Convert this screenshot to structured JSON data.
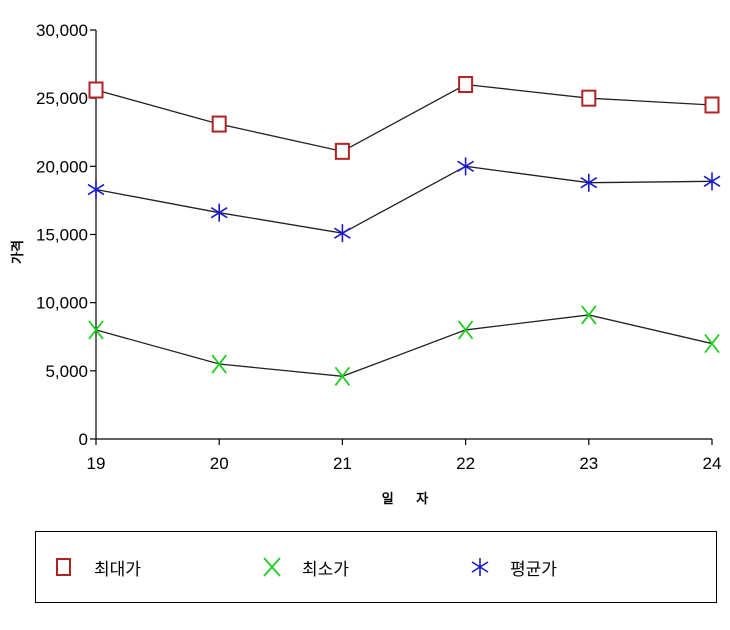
{
  "chart_data": {
    "type": "line",
    "xlabel": "일 자",
    "ylabel": "가격",
    "x": [
      19,
      20,
      21,
      22,
      23,
      24
    ],
    "ylim": [
      0,
      30000
    ],
    "yticks": [
      "0",
      "5,000",
      "10,000",
      "15,000",
      "20,000",
      "25,000",
      "30,000"
    ],
    "ytick_values": [
      0,
      5000,
      10000,
      15000,
      20000,
      25000,
      30000
    ],
    "grid": false,
    "legend_position": "bottom",
    "series": [
      {
        "name": "최대가",
        "marker": "square",
        "color": "#b22222",
        "values": [
          25600,
          23100,
          21100,
          26000,
          25000,
          24500
        ]
      },
      {
        "name": "최소가",
        "marker": "x",
        "color": "#22cc22",
        "values": [
          8000,
          5500,
          4600,
          8000,
          9100,
          7000
        ]
      },
      {
        "name": "평균가",
        "marker": "asterisk",
        "color": "#1a1acc",
        "values": [
          18300,
          16600,
          15100,
          20000,
          18800,
          18900
        ]
      }
    ]
  }
}
